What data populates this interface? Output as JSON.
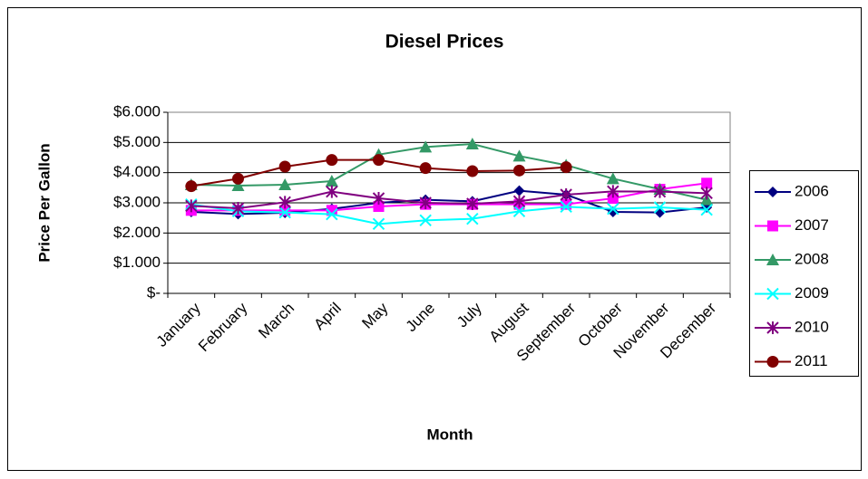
{
  "chart_data": {
    "type": "line",
    "title": "Diesel Prices",
    "x_label": "Month",
    "y_label": "Price Per Gallon",
    "categories": [
      "January",
      "February",
      "March",
      "April",
      "May",
      "June",
      "July",
      "August",
      "September",
      "October",
      "November",
      "December"
    ],
    "ylim": [
      0,
      6
    ],
    "yticks": [
      {
        "value": 0,
        "label": "$-"
      },
      {
        "value": 1,
        "label": "$1.000"
      },
      {
        "value": 2,
        "label": "$2.000"
      },
      {
        "value": 3,
        "label": "$3.000"
      },
      {
        "value": 4,
        "label": "$4.000"
      },
      {
        "value": 5,
        "label": "$5.000"
      },
      {
        "value": 6,
        "label": "$6.000"
      }
    ],
    "grid": true,
    "legend": "right",
    "series": [
      {
        "name": "2006",
        "color": "#000080",
        "marker": "diamond",
        "values": [
          2.7,
          2.63,
          2.67,
          2.8,
          3.0,
          3.1,
          3.05,
          3.4,
          3.27,
          2.7,
          2.68,
          2.85
        ]
      },
      {
        "name": "2007",
        "color": "#ff00ff",
        "marker": "square",
        "values": [
          2.75,
          2.75,
          2.75,
          2.75,
          2.88,
          2.95,
          2.95,
          2.95,
          2.95,
          3.15,
          3.45,
          3.65
        ]
      },
      {
        "name": "2008",
        "color": "#339966",
        "marker": "triangle",
        "values": [
          3.6,
          3.57,
          3.6,
          3.72,
          4.6,
          4.85,
          4.95,
          4.55,
          4.25,
          3.8,
          3.45,
          3.1
        ]
      },
      {
        "name": "2009",
        "color": "#00ffff",
        "marker": "x",
        "values": [
          2.95,
          2.72,
          2.68,
          2.62,
          2.3,
          2.42,
          2.47,
          2.72,
          2.87,
          2.8,
          2.85,
          2.77
        ]
      },
      {
        "name": "2010",
        "color": "#800080",
        "marker": "star",
        "values": [
          2.9,
          2.82,
          3.02,
          3.37,
          3.15,
          3.0,
          2.97,
          3.05,
          3.27,
          3.38,
          3.37,
          3.32
        ]
      },
      {
        "name": "2011",
        "color": "#800000",
        "marker": "circle",
        "values": [
          3.55,
          3.8,
          4.2,
          4.42,
          4.42,
          4.15,
          4.05,
          4.07,
          4.18,
          null,
          null,
          null
        ]
      }
    ]
  }
}
